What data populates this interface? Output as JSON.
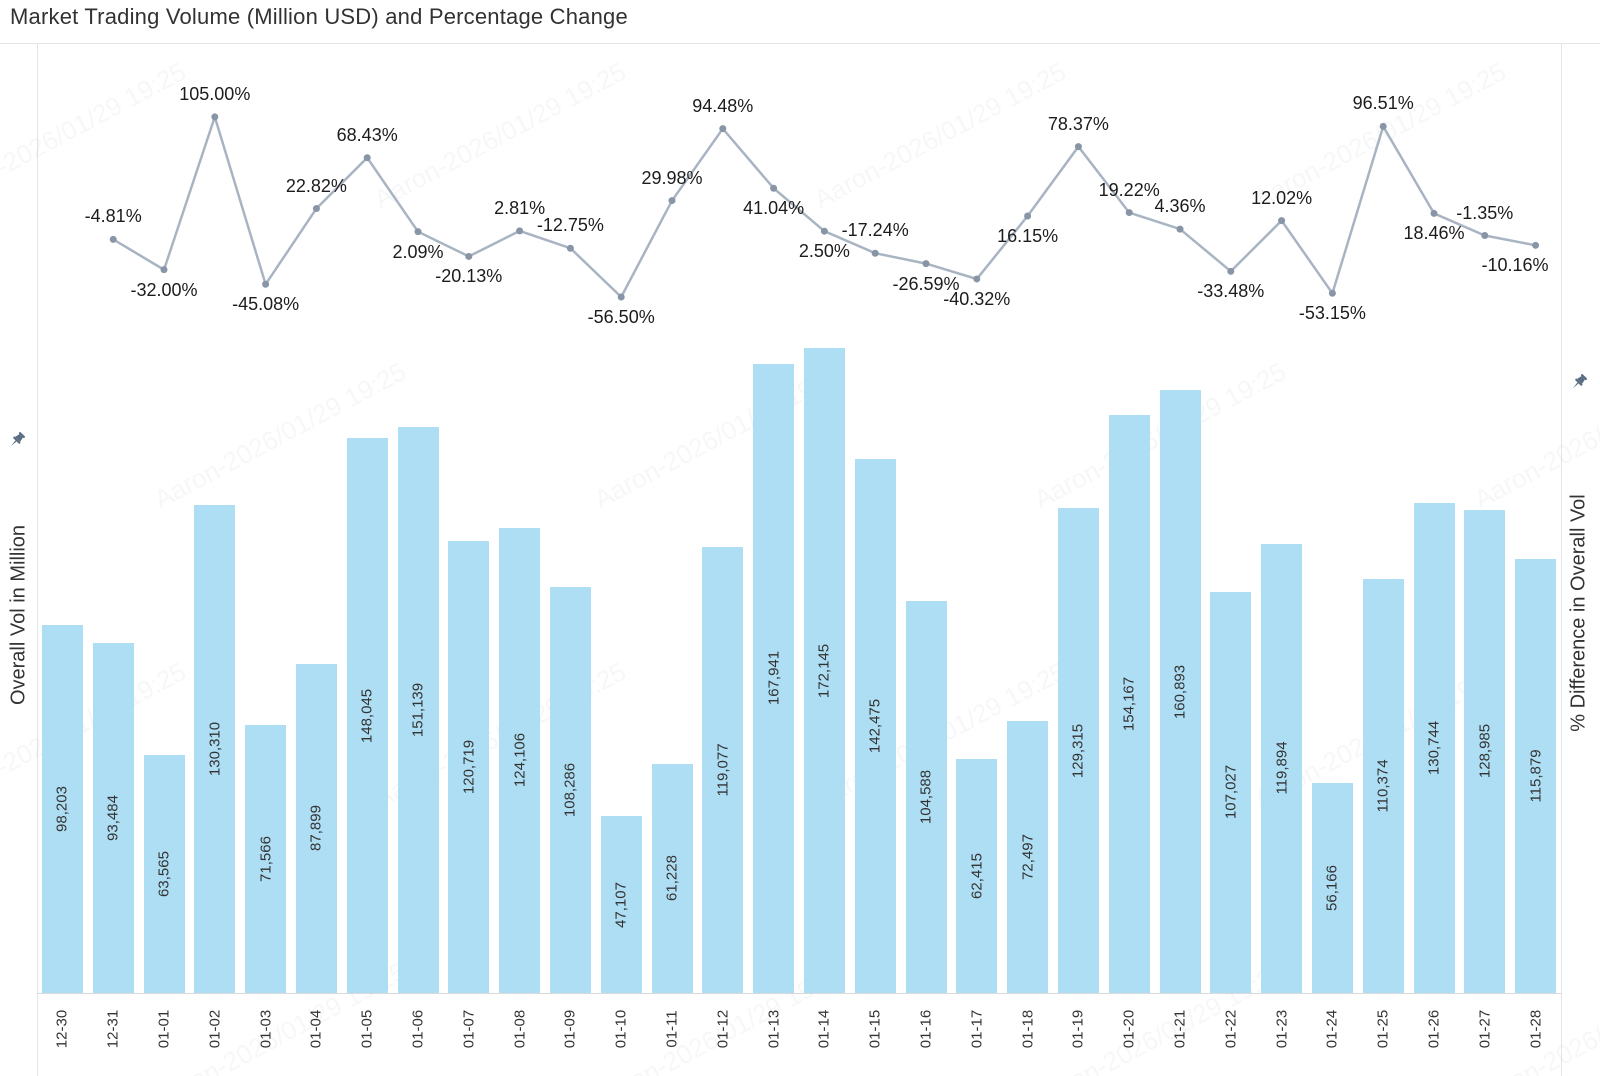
{
  "title": "Market Trading Volume (Million USD) and Percentage Change",
  "left_axis": {
    "label": "Overall Vol in Million"
  },
  "right_axis": {
    "label": "% Difference in Overall Vol"
  },
  "watermark_text": "Aaron-2026/01/29 19:25",
  "colors": {
    "bar": "#aedef3",
    "line": "#a9b4c2",
    "marker": "#8795a6",
    "bar_label": "#333333",
    "pct_label": "#1c1c1c",
    "border": "#e4e4e4",
    "axis_line": "#dadada",
    "title": "#323232"
  },
  "chart_data": {
    "type": "combo",
    "title": "Market Trading Volume (Million USD) and Percentage Change",
    "categories": [
      "12-30",
      "12-31",
      "01-01",
      "01-02",
      "01-03",
      "01-04",
      "01-05",
      "01-06",
      "01-07",
      "01-08",
      "01-09",
      "01-10",
      "01-11",
      "01-12",
      "01-13",
      "01-14",
      "01-15",
      "01-16",
      "01-17",
      "01-18",
      "01-19",
      "01-20",
      "01-21",
      "01-22",
      "01-23",
      "01-24",
      "01-25",
      "01-26",
      "01-27",
      "01-28"
    ],
    "grid": false,
    "legend": "none",
    "left_axis_title": "Overall Vol in Million",
    "right_axis_title": "% Difference in Overall Vol",
    "series": [
      {
        "name": "Overall Vol in Million",
        "type": "bar",
        "color": "#aedef3",
        "values": [
          98203,
          93484,
          63565,
          130310,
          71566,
          87899,
          148045,
          151139,
          120719,
          124106,
          108286,
          47107,
          61228,
          119077,
          167941,
          172145,
          142475,
          104588,
          62415,
          72497,
          129315,
          154167,
          160893,
          107027,
          119894,
          56166,
          110374,
          130744,
          128985,
          115879
        ],
        "labels": [
          "98,203",
          "93,484",
          "63,565",
          "130,310",
          "71,566",
          "87,899",
          "148,045",
          "151,139",
          "120,719",
          "124,106",
          "108,286",
          "47,107",
          "61,228",
          "119,077",
          "167,941",
          "172,145",
          "142,475",
          "104,588",
          "62,415",
          "72,497",
          "129,315",
          "154,167",
          "160,893",
          "107,027",
          "119,894",
          "56,166",
          "110,374",
          "130,744",
          "128,985",
          "115,879"
        ]
      },
      {
        "name": "% Difference in Overall Vol",
        "type": "line",
        "color": "#a9b4c2",
        "marker_color": "#8795a6",
        "categories": [
          "12-31",
          "01-01",
          "01-02",
          "01-03",
          "01-04",
          "01-05",
          "01-06",
          "01-07",
          "01-08",
          "01-09",
          "01-10",
          "01-11",
          "01-12",
          "01-13",
          "01-14",
          "01-15",
          "01-16",
          "01-17",
          "01-18",
          "01-19",
          "01-20",
          "01-21",
          "01-22",
          "01-23",
          "01-24",
          "01-25",
          "01-26",
          "01-27",
          "01-28"
        ],
        "values": [
          -4.81,
          -32.0,
          105.0,
          -45.08,
          22.82,
          68.43,
          2.09,
          -20.13,
          2.81,
          -12.75,
          -56.5,
          29.98,
          94.48,
          41.04,
          2.5,
          -17.24,
          -26.59,
          -40.32,
          16.15,
          78.37,
          19.22,
          4.36,
          -33.48,
          12.02,
          -53.15,
          96.51,
          18.46,
          -1.35,
          -10.16
        ],
        "labels": [
          "-4.81%",
          "-32.00%",
          "105.00%",
          "-45.08%",
          "22.82%",
          "68.43%",
          "2.09%",
          "-20.13%",
          "2.81%",
          "-12.75%",
          "-56.50%",
          "29.98%",
          "94.48%",
          "41.04%",
          "2.50%",
          "-17.24%",
          "-26.59%",
          "-40.32%",
          "16.15%",
          "78.37%",
          "19.22%",
          "4.36%",
          "-33.48%",
          "12.02%",
          "-53.15%",
          "96.51%",
          "18.46%",
          "-1.35%",
          "-10.16%"
        ],
        "label_positions": [
          "above",
          "below",
          "above",
          "below",
          "above",
          "above",
          "below",
          "below",
          "above",
          "above",
          "below",
          "above",
          "above",
          "below",
          "below",
          "above",
          "below",
          "below",
          "below",
          "above",
          "above",
          "above",
          "below",
          "above",
          "below",
          "above",
          "below",
          "above",
          "below"
        ]
      }
    ]
  }
}
